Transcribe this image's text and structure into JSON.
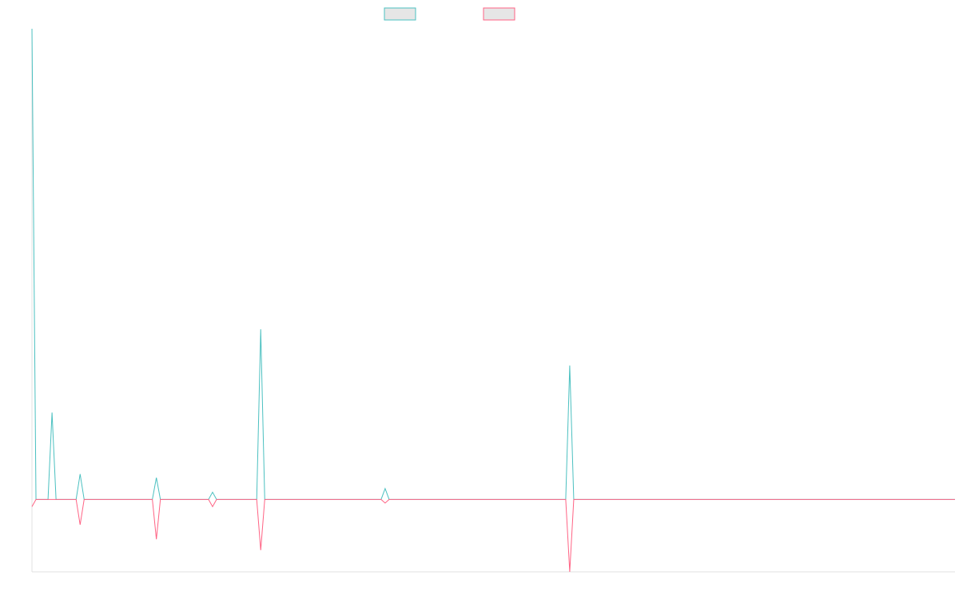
{
  "chart_data": {
    "type": "line",
    "title": "",
    "xlabel": "",
    "ylabel": "",
    "grid": false,
    "legend_position": "top-center",
    "xlim": [
      0,
      230
    ],
    "ylim": [
      -20,
      130
    ],
    "series": [
      {
        "name": "",
        "color": "#4bc0c0",
        "fill": "#e6e6e6",
        "points": [
          [
            0,
            130
          ],
          [
            1,
            0
          ],
          [
            4,
            0
          ],
          [
            5,
            24
          ],
          [
            6,
            0
          ],
          [
            11,
            0
          ],
          [
            12,
            7
          ],
          [
            13,
            0
          ],
          [
            30,
            0
          ],
          [
            31,
            6
          ],
          [
            32,
            0
          ],
          [
            44,
            0
          ],
          [
            45,
            2
          ],
          [
            46,
            0
          ],
          [
            48,
            0
          ],
          [
            49,
            0
          ],
          [
            50,
            0
          ],
          [
            51,
            0
          ],
          [
            53,
            0
          ],
          [
            56,
            0
          ],
          [
            57,
            47
          ],
          [
            58,
            0
          ],
          [
            87,
            0
          ],
          [
            88,
            3
          ],
          [
            89,
            0
          ],
          [
            133,
            0
          ],
          [
            134,
            37
          ],
          [
            135,
            0
          ],
          [
            230,
            0
          ]
        ]
      },
      {
        "name": "",
        "color": "#ff6384",
        "fill": "#e6e6e6",
        "points": [
          [
            0,
            -2
          ],
          [
            1,
            0
          ],
          [
            11,
            0
          ],
          [
            12,
            -7
          ],
          [
            13,
            0
          ],
          [
            30,
            0
          ],
          [
            31,
            -11
          ],
          [
            32,
            0
          ],
          [
            44,
            0
          ],
          [
            45,
            -2
          ],
          [
            46,
            0
          ],
          [
            48,
            0
          ],
          [
            49,
            0
          ],
          [
            50,
            0
          ],
          [
            51,
            0
          ],
          [
            53,
            0
          ],
          [
            56,
            0
          ],
          [
            57,
            -14
          ],
          [
            58,
            0
          ],
          [
            87,
            0
          ],
          [
            88,
            -1
          ],
          [
            89,
            0
          ],
          [
            133,
            0
          ],
          [
            134,
            -20
          ],
          [
            135,
            0
          ],
          [
            230,
            0
          ]
        ]
      }
    ]
  }
}
